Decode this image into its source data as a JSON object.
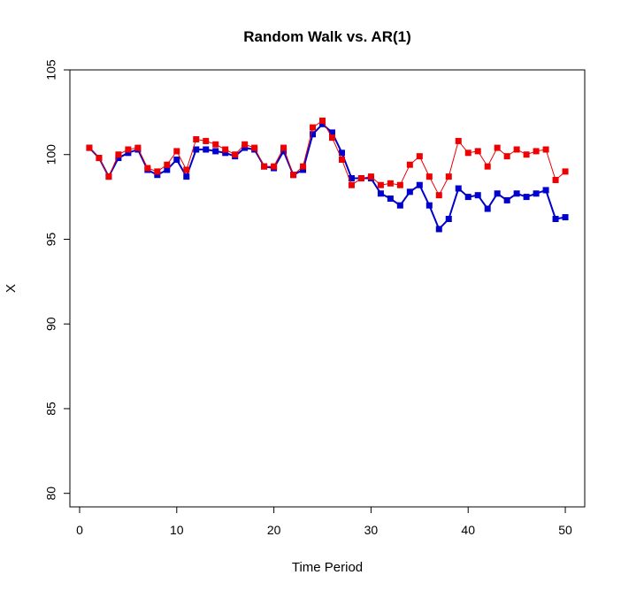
{
  "chart_data": {
    "type": "line",
    "title": "Random Walk vs. AR(1)",
    "xlabel": "Time Period",
    "ylabel": "X",
    "xlim": [
      -1,
      52
    ],
    "ylim": [
      79.2,
      105.0
    ],
    "x_ticks": [
      0,
      10,
      20,
      30,
      40,
      50
    ],
    "x_tick_labels": [
      "0",
      "10",
      "20",
      "30",
      "40",
      "50"
    ],
    "y_ticks": [
      80,
      85,
      90,
      95,
      100,
      105
    ],
    "y_tick_labels": [
      "80",
      "85",
      "90",
      "95",
      "100",
      "105"
    ],
    "grid": false,
    "legend": "none",
    "x": [
      1,
      2,
      3,
      4,
      5,
      6,
      7,
      8,
      9,
      10,
      11,
      12,
      13,
      14,
      15,
      16,
      17,
      18,
      19,
      20,
      21,
      22,
      23,
      24,
      25,
      26,
      27,
      28,
      29,
      30,
      31,
      32,
      33,
      34,
      35,
      36,
      37,
      38,
      39,
      40,
      41,
      42,
      43,
      44,
      45,
      46,
      47,
      48,
      49,
      50
    ],
    "series": [
      {
        "color": "#0000cc",
        "line_width": 2,
        "marker": "square",
        "values": [
          100.4,
          99.8,
          98.7,
          99.8,
          100.1,
          100.3,
          99.1,
          98.8,
          99.1,
          99.7,
          98.7,
          100.3,
          100.3,
          100.2,
          100.1,
          99.9,
          100.4,
          100.3,
          99.3,
          99.2,
          100.2,
          98.8,
          99.1,
          101.2,
          101.8,
          101.3,
          100.1,
          98.6,
          98.6,
          98.6,
          97.7,
          97.4,
          97.0,
          97.8,
          98.2,
          97.0,
          95.6,
          96.2,
          98.0,
          97.5,
          97.6,
          96.8,
          97.7,
          97.3,
          97.7,
          97.5,
          97.7,
          97.9,
          96.2,
          96.3
        ]
      },
      {
        "color": "#ee0000",
        "line_width": 1,
        "marker": "square",
        "values": [
          100.4,
          99.8,
          98.7,
          100.0,
          100.3,
          100.4,
          99.2,
          99.0,
          99.4,
          100.2,
          99.1,
          100.9,
          100.8,
          100.6,
          100.3,
          100.0,
          100.6,
          100.4,
          99.3,
          99.3,
          100.4,
          98.8,
          99.3,
          101.6,
          102.0,
          101.0,
          99.7,
          98.2,
          98.6,
          98.7,
          98.2,
          98.3,
          98.2,
          99.4,
          99.9,
          98.7,
          97.6,
          98.7,
          100.8,
          100.1,
          100.2,
          99.3,
          100.4,
          99.9,
          100.3,
          100.0,
          100.2,
          100.3,
          98.5,
          99.0
        ]
      }
    ]
  }
}
